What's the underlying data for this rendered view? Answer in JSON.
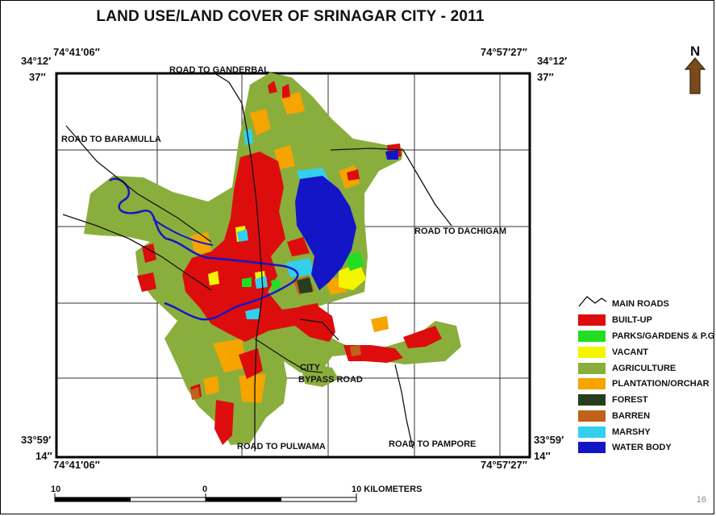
{
  "title": "LAND USE/LAND COVER OF SRINAGAR CITY - 2011",
  "coords": {
    "lon_west_top": "74°41′06′′",
    "lon_east_top": "74°57′27′′",
    "lon_west_bottom": "74°41′06′′",
    "lon_east_bottom": "74°57′27′′",
    "lat_north_left_1": "34°12′",
    "lat_north_left_2": "37′′",
    "lat_north_right_1": "34°12′",
    "lat_north_right_2": "37′′",
    "lat_south_left_1": "33°59′",
    "lat_south_left_2": "14′′",
    "lat_south_right_1": "33°59′",
    "lat_south_right_2": "14′′"
  },
  "roads": {
    "ganderbal": "ROAD TO GANDERBAL",
    "baramulla": "ROAD TO BARAMULLA",
    "dachigam": "ROAD TO DACHIGAM",
    "bypass_1": "CITY",
    "bypass_2": "BYPASS ROAD",
    "pulwama": "ROAD TO PULWAMA",
    "pampore": "ROAD TO PAMPORE"
  },
  "north_arrow": {
    "label": "N",
    "icon": "north-arrow-icon"
  },
  "legend": [
    {
      "label": "MAIN ROADS",
      "color": "#000000",
      "type": "line"
    },
    {
      "label": "BUILT-UP",
      "color": "#dd0d0d",
      "type": "fill"
    },
    {
      "label": "PARKS/GARDENS & P.G",
      "color": "#22dd22",
      "type": "fill"
    },
    {
      "label": "VACANT",
      "color": "#f5f500",
      "type": "fill"
    },
    {
      "label": "AGRICULTURE",
      "color": "#8aae3c",
      "type": "fill"
    },
    {
      "label": "PLANTATION/ORCHAR",
      "color": "#f5a400",
      "type": "fill"
    },
    {
      "label": "FOREST",
      "color": "#263d1e",
      "type": "fill"
    },
    {
      "label": "BARREN",
      "color": "#c0621a",
      "type": "fill"
    },
    {
      "label": "MARSHY",
      "color": "#33d0ee",
      "type": "fill"
    },
    {
      "label": "WATER BODY",
      "color": "#1515c8",
      "type": "fill"
    }
  ],
  "scale": {
    "left": "10",
    "mid": "0",
    "right": "10 KILOMETERS"
  },
  "page_number": "16"
}
